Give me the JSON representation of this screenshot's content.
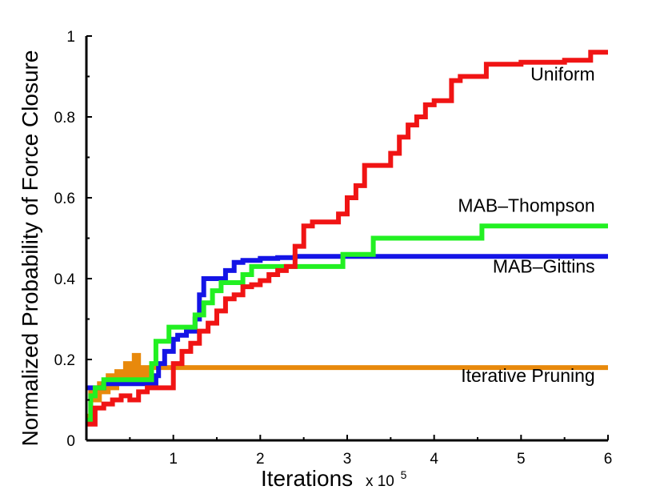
{
  "chart_data": {
    "type": "line",
    "title": "",
    "xlabel": "Iterations",
    "xlabel_multiplier": "x 10",
    "xlabel_exponent": "5",
    "ylabel": "Normalized Probability of Force Closure",
    "xlim": [
      0,
      6
    ],
    "ylim": [
      0,
      1
    ],
    "xticks": [
      1,
      2,
      3,
      4,
      5,
      6
    ],
    "yticks": [
      0,
      0.2,
      0.4,
      0.6,
      0.8,
      1
    ],
    "ytick_labels": [
      "0",
      "0.2",
      "0.4",
      "0.6",
      "0.8",
      "1"
    ],
    "grid": false,
    "legend": "labels placed next to each line on the right",
    "series": [
      {
        "name": "Iterative Pruning",
        "color": "#e8890c",
        "x": [
          0,
          0.05,
          0.1,
          0.15,
          0.2,
          0.25,
          0.3,
          0.35,
          0.4,
          0.45,
          0.5,
          0.55,
          0.6,
          0.65,
          0.7,
          0.75,
          0.8,
          0.9,
          1.0,
          2.0,
          3.0,
          4.0,
          5.0,
          6.0
        ],
        "y": [
          0.06,
          0.12,
          0.1,
          0.14,
          0.12,
          0.16,
          0.13,
          0.17,
          0.15,
          0.19,
          0.16,
          0.21,
          0.15,
          0.18,
          0.16,
          0.18,
          0.18,
          0.18,
          0.18,
          0.18,
          0.18,
          0.18,
          0.18,
          0.18
        ]
      },
      {
        "name": "MAB–Gittins",
        "color": "#1414e6",
        "x": [
          0,
          0.2,
          0.5,
          0.75,
          0.8,
          0.83,
          0.9,
          1.0,
          1.05,
          1.15,
          1.25,
          1.3,
          1.35,
          1.5,
          1.6,
          1.7,
          1.8,
          2.0,
          2.2,
          2.4,
          3.0,
          4.0,
          5.0,
          6.0
        ],
        "y": [
          0.13,
          0.14,
          0.14,
          0.14,
          0.16,
          0.19,
          0.22,
          0.25,
          0.26,
          0.27,
          0.3,
          0.36,
          0.4,
          0.4,
          0.42,
          0.44,
          0.445,
          0.45,
          0.452,
          0.455,
          0.455,
          0.455,
          0.455,
          0.455
        ]
      },
      {
        "name": "MAB–Thompson",
        "color": "#22f022",
        "x": [
          0,
          0.05,
          0.1,
          0.2,
          0.5,
          0.7,
          0.75,
          0.8,
          0.9,
          0.95,
          1.2,
          1.25,
          1.35,
          1.45,
          1.55,
          1.65,
          1.8,
          1.9,
          2.2,
          2.5,
          2.95,
          3.3,
          4.0,
          4.55,
          5.0,
          6.0
        ],
        "y": [
          0.05,
          0.11,
          0.13,
          0.15,
          0.15,
          0.15,
          0.19,
          0.245,
          0.245,
          0.28,
          0.28,
          0.31,
          0.34,
          0.37,
          0.39,
          0.39,
          0.41,
          0.43,
          0.43,
          0.43,
          0.46,
          0.5,
          0.5,
          0.53,
          0.53,
          0.53
        ]
      },
      {
        "name": "Uniform",
        "color": "#f01414",
        "x": [
          0,
          0.1,
          0.2,
          0.3,
          0.4,
          0.5,
          0.6,
          0.7,
          0.8,
          0.95,
          1.0,
          1.1,
          1.2,
          1.3,
          1.4,
          1.5,
          1.6,
          1.7,
          1.8,
          1.9,
          2.0,
          2.1,
          2.2,
          2.3,
          2.4,
          2.5,
          2.6,
          2.8,
          2.9,
          3.0,
          3.1,
          3.2,
          3.4,
          3.5,
          3.6,
          3.7,
          3.8,
          3.9,
          4.0,
          4.1,
          4.2,
          4.3,
          4.5,
          4.6,
          5.0,
          5.5,
          5.8,
          6.0
        ],
        "y": [
          0.04,
          0.08,
          0.09,
          0.1,
          0.11,
          0.1,
          0.12,
          0.13,
          0.13,
          0.13,
          0.19,
          0.22,
          0.24,
          0.27,
          0.29,
          0.32,
          0.35,
          0.36,
          0.38,
          0.385,
          0.395,
          0.41,
          0.42,
          0.43,
          0.48,
          0.53,
          0.54,
          0.54,
          0.56,
          0.6,
          0.63,
          0.68,
          0.68,
          0.71,
          0.75,
          0.78,
          0.8,
          0.83,
          0.84,
          0.84,
          0.89,
          0.9,
          0.9,
          0.93,
          0.935,
          0.94,
          0.96,
          0.96
        ]
      }
    ],
    "annotations": [
      {
        "text": "Uniform",
        "x": 5.85,
        "y": 0.89,
        "align": "end"
      },
      {
        "text": "MAB–Thompson",
        "x": 5.85,
        "y": 0.565,
        "align": "end"
      },
      {
        "text": "MAB–Gittins",
        "x": 5.85,
        "y": 0.415,
        "align": "end"
      },
      {
        "text": "Iterative Pruning",
        "x": 5.85,
        "y": 0.145,
        "align": "end"
      }
    ]
  }
}
